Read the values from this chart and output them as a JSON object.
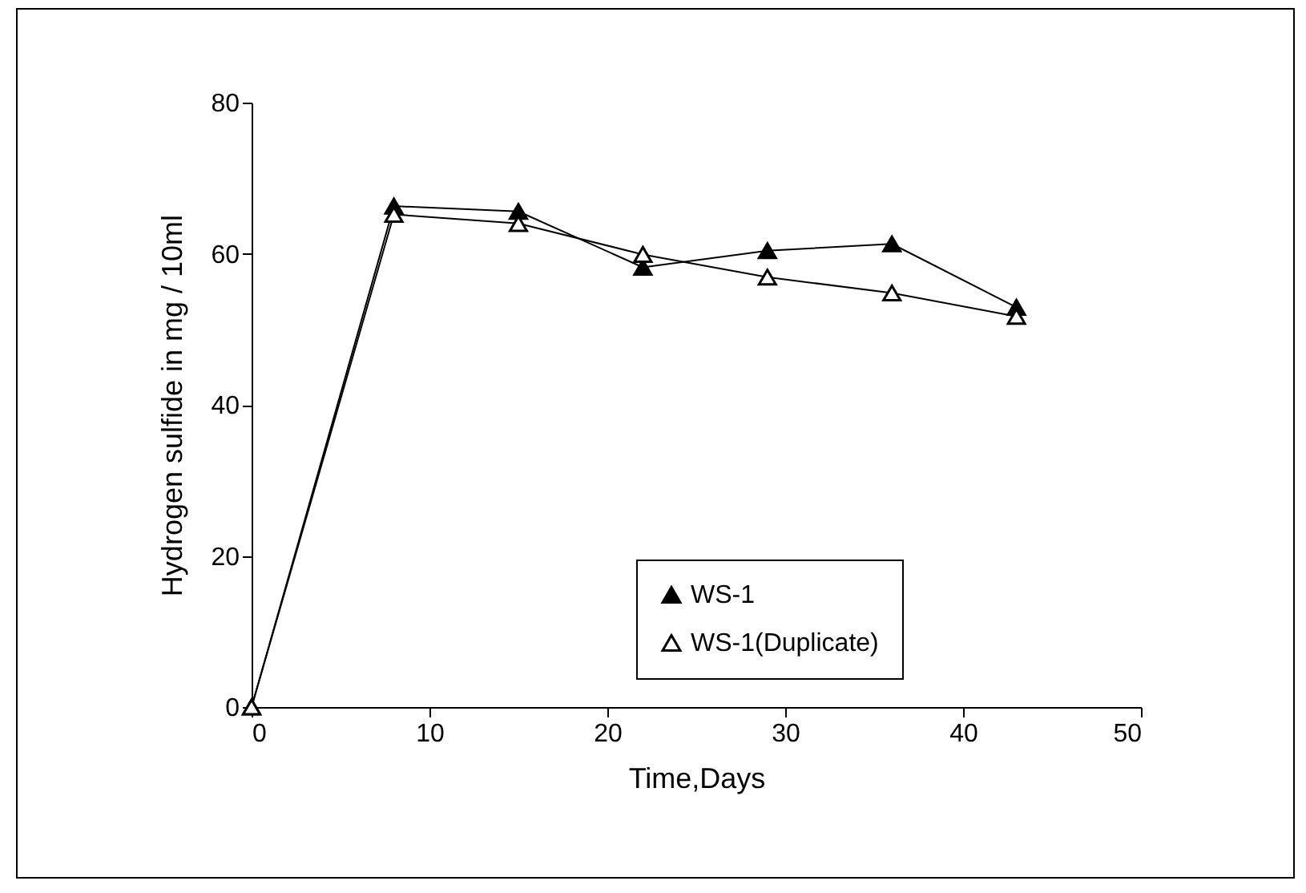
{
  "chart_data": {
    "type": "line",
    "xlabel": "Time,Days",
    "ylabel": "Hydrogen sulfide in mg / 10ml",
    "x": [
      0,
      8,
      15,
      22,
      29,
      36,
      43
    ],
    "series": [
      {
        "name": "WS-1",
        "color": "#000000",
        "values": [
          0,
          66.3,
          65.6,
          58.2,
          60.4,
          61.3,
          52.9
        ]
      },
      {
        "name": "WS-1(Duplicate)",
        "color": "#000000",
        "values": [
          0,
          65.2,
          64,
          59.9,
          56.9,
          54.8,
          51.7
        ]
      }
    ],
    "xlim": [
      0,
      50
    ],
    "xticks": [
      0,
      10,
      20,
      30,
      40,
      50
    ],
    "ylim": [
      0,
      80
    ],
    "yticks": [
      0,
      20,
      40,
      60,
      80
    ],
    "grid": false,
    "legend": "bottom right",
    "marker": "triangle",
    "line_style": "solid"
  }
}
